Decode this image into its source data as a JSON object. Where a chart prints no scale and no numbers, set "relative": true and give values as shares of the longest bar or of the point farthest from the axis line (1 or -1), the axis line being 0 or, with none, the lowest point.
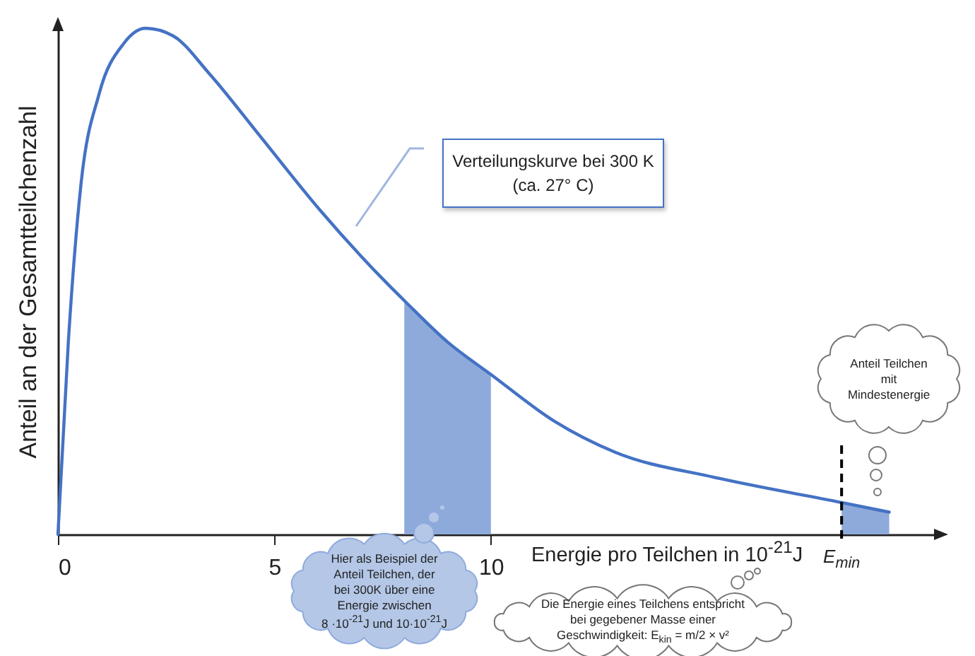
{
  "chart_data": {
    "type": "line",
    "relative": true,
    "xlabel": "Energie pro Teilchen in 10$^{-21}$J",
    "ylabel": "Anteil an der Gesamtteilchenzahl",
    "xlim": [
      0,
      20.3
    ],
    "xticks": [
      0,
      5,
      10
    ],
    "series": [
      {
        "color": "#4472c4",
        "x": [
          0,
          0.24,
          0.53,
          0.95,
          1.52,
          2.02,
          2.66,
          3.5,
          4.64,
          6.06,
          7.67,
          8,
          9,
          10,
          11.46,
          12.88,
          15.15,
          18.1,
          19.2
        ],
        "values": [
          0,
          0.38,
          0.69,
          0.87,
          0.97,
          1,
          0.985,
          0.91,
          0.79,
          0.64,
          0.49,
          0.462,
          0.38,
          0.316,
          0.224,
          0.162,
          0.113,
          0.063,
          0.044
        ]
      },
      {
        "type": "area",
        "color": "#8eaadb",
        "x": [
          8,
          9,
          10
        ],
        "values": [
          0.462,
          0.38,
          0.316
        ]
      },
      {
        "type": "area",
        "color": "#8eaadb",
        "x": [
          18.1,
          19.2
        ],
        "values": [
          0.063,
          0.044
        ]
      }
    ],
    "ref_lines": [
      {
        "axis": "x",
        "value": 18.1,
        "label": "E$_{min}$",
        "line_style": "dashed",
        "color": "#000000"
      }
    ],
    "annotations": [
      "Verteilungskurve bei 300 K\n(ca. 27° C)",
      "Anteil Teilchen\nmit\nMindestenergie",
      "Hier als Beispiel der\nAnteil Teilchen, der\nbei 300K über eine\nEnergie zwischen\n8 ·10$^{-21}$J und 10·10$^{-21}$J",
      "Die Energie eines Teilchens entspricht\nbei gegebener Masse einer\nGeschwindigkeit:  E$_{kin}$ = m/2 × v²"
    ]
  }
}
